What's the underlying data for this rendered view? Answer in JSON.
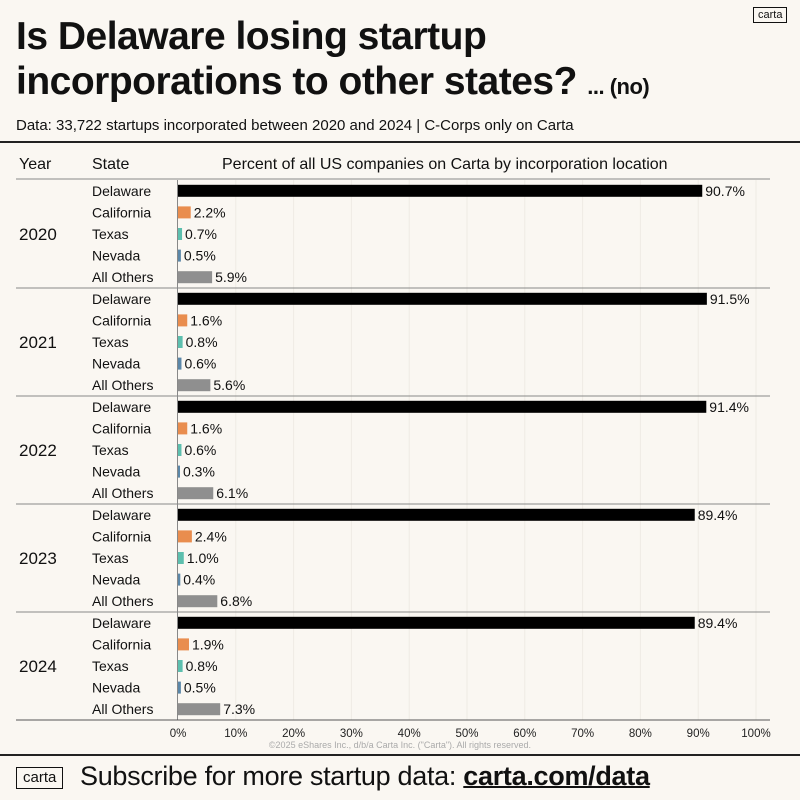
{
  "brand": {
    "logo": "carta"
  },
  "header": {
    "title_line1": "Is Delaware losing startup",
    "title_line2": "incorporations to other states?",
    "title_suffix": "... (no)",
    "subtitle": "Data: 33,722 startups incorporated between 2020 and 2024 | C-Corps only on Carta"
  },
  "table_headers": {
    "year": "Year",
    "state": "State",
    "metric": "Percent of all US companies on Carta by incorporation location"
  },
  "colors": {
    "Delaware": "#000000",
    "California": "#e98d4e",
    "Texas": "#5dbfae",
    "Nevada": "#5b87a8",
    "All Others": "#8f8f8f",
    "background": "#faf7f2"
  },
  "chart_data": {
    "type": "bar",
    "orientation": "horizontal",
    "title": "Percent of all US companies on Carta by incorporation location",
    "xlabel": "",
    "ylabel": "",
    "xlim": [
      0,
      100
    ],
    "x_ticks": [
      "0%",
      "10%",
      "20%",
      "30%",
      "40%",
      "50%",
      "60%",
      "70%",
      "80%",
      "90%",
      "100%"
    ],
    "grid": true,
    "categories": [
      "Delaware",
      "California",
      "Texas",
      "Nevada",
      "All Others"
    ],
    "groups": [
      {
        "year": "2020",
        "values": [
          90.7,
          2.2,
          0.7,
          0.5,
          5.9
        ],
        "labels": [
          "90.7%",
          "2.2%",
          "0.7%",
          "0.5%",
          "5.9%"
        ]
      },
      {
        "year": "2021",
        "values": [
          91.5,
          1.6,
          0.8,
          0.6,
          5.6
        ],
        "labels": [
          "91.5%",
          "1.6%",
          "0.8%",
          "0.6%",
          "5.6%"
        ]
      },
      {
        "year": "2022",
        "values": [
          91.4,
          1.6,
          0.6,
          0.3,
          6.1
        ],
        "labels": [
          "91.4%",
          "1.6%",
          "0.6%",
          "0.3%",
          "6.1%"
        ]
      },
      {
        "year": "2023",
        "values": [
          89.4,
          2.4,
          1.0,
          0.4,
          6.8
        ],
        "labels": [
          "89.4%",
          "2.4%",
          "1.0%",
          "0.4%",
          "6.8%"
        ]
      },
      {
        "year": "2024",
        "values": [
          89.4,
          1.9,
          0.8,
          0.5,
          7.3
        ],
        "labels": [
          "89.4%",
          "1.9%",
          "0.8%",
          "0.5%",
          "7.3%"
        ]
      }
    ]
  },
  "copyright": "©2025 eShares Inc., d/b/a Carta Inc. (\"Carta\"). All rights reserved.",
  "footer": {
    "text": "Subscribe for more startup data: ",
    "link": "carta.com/data"
  }
}
